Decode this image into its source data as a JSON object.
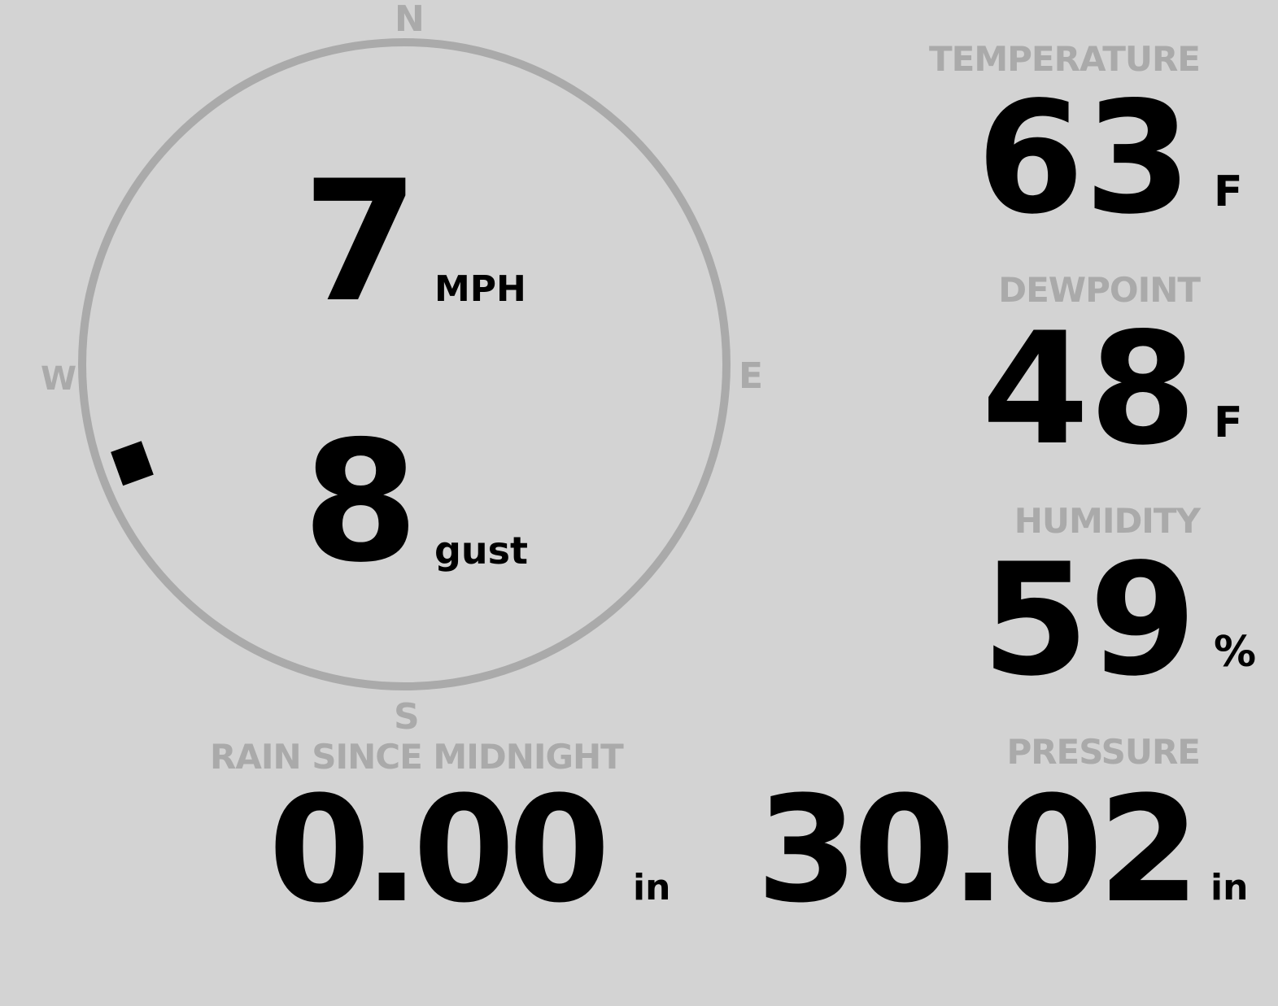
{
  "colors": {
    "background": "#d3d3d3",
    "label": "#aaaaaa",
    "value": "#000000",
    "ring": "#aaaaaa"
  },
  "wind": {
    "compass": {
      "n": "N",
      "e": "E",
      "s": "S",
      "w": "W"
    },
    "speed": "7",
    "speed_unit": "MPH",
    "gust": "8",
    "gust_unit": "gust",
    "direction_degrees": 250
  },
  "temperature": {
    "label": "TEMPERATURE",
    "value": "63",
    "unit": "F"
  },
  "dewpoint": {
    "label": "DEWPOINT",
    "value": "48",
    "unit": "F"
  },
  "humidity": {
    "label": "HUMIDITY",
    "value": "59",
    "unit": "%"
  },
  "rain": {
    "label": "RAIN SINCE MIDNIGHT",
    "value": "0.00",
    "unit": "in"
  },
  "pressure": {
    "label": "PRESSURE",
    "value": "30.02",
    "unit": "in"
  }
}
